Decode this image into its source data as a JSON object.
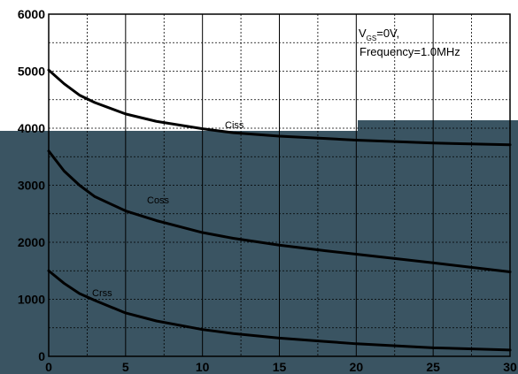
{
  "chart_data": {
    "type": "line",
    "title": "",
    "xlabel": "",
    "ylabel": "",
    "xlim": [
      0,
      30
    ],
    "ylim": [
      0,
      6000
    ],
    "x_ticks": [
      0,
      5,
      10,
      15,
      20,
      25,
      30
    ],
    "y_ticks": [
      0,
      1000,
      2000,
      3000,
      4000,
      5000,
      6000
    ],
    "x_tick_labels": [
      "0",
      "5",
      "10",
      "15",
      "20",
      "25",
      "30"
    ],
    "y_tick_labels": [
      "0",
      "1000",
      "2000",
      "3000",
      "4000",
      "5000",
      "6000"
    ],
    "grid": true,
    "x_minor_step": 2.5,
    "y_minor_step": 500,
    "line_color": "#000000",
    "lower_panel_color": "#3a5462",
    "series": [
      {
        "name": "Ciss",
        "x": [
          0,
          1,
          2,
          3,
          5,
          7,
          10,
          12,
          15,
          18,
          20,
          25,
          30
        ],
        "y": [
          5020,
          4780,
          4580,
          4450,
          4250,
          4120,
          3990,
          3920,
          3860,
          3820,
          3790,
          3740,
          3710
        ]
      },
      {
        "name": "Coss",
        "x": [
          0,
          1,
          2,
          3,
          5,
          7,
          10,
          12,
          15,
          18,
          20,
          25,
          30
        ],
        "y": [
          3600,
          3250,
          3000,
          2800,
          2550,
          2380,
          2170,
          2070,
          1950,
          1850,
          1790,
          1640,
          1480
        ]
      },
      {
        "name": "Crss",
        "x": [
          0,
          1,
          2,
          3,
          5,
          7,
          10,
          12,
          15,
          18,
          20,
          25,
          30
        ],
        "y": [
          1500,
          1280,
          1100,
          980,
          760,
          620,
          470,
          400,
          320,
          260,
          220,
          150,
          110
        ]
      }
    ],
    "annotation": {
      "line1_main": "V",
      "line1_sub": "GS",
      "line1_rest": "=0V,",
      "line2": "Frequency=1.0MHz"
    }
  }
}
